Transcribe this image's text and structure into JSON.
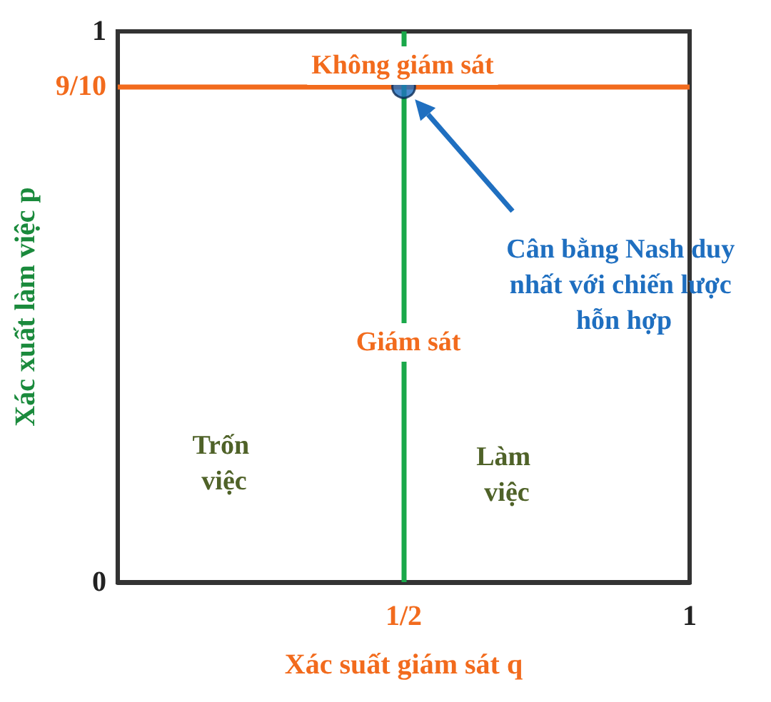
{
  "chart_data": {
    "type": "scatter",
    "xlabel": "Xác suất giám sát q",
    "ylabel": "Xác xuất làm việc p",
    "x": [
      0.5
    ],
    "values": [
      0.9
    ],
    "color": "#1f6fc0",
    "marker": "circle",
    "xlim": [
      0,
      1
    ],
    "ylim": [
      0,
      1
    ],
    "xticks": [
      {
        "value": 0.5,
        "label": "1/2"
      },
      1
    ],
    "yticks": [
      0,
      {
        "value": 0.9,
        "label": "9/10"
      },
      1
    ],
    "grid": false,
    "ref_lines": [
      {
        "axis": "y",
        "value": 0.9,
        "color": "#f26b1d"
      },
      {
        "axis": "x",
        "value": 0.5,
        "color": "#1aa84a"
      }
    ],
    "annotations": [
      "Không giám sát",
      "Giám sát",
      "Trốn việc",
      "Làm việc",
      "Cân bằng Nash duy nhất với chiến lược hỗn hợp"
    ]
  }
}
